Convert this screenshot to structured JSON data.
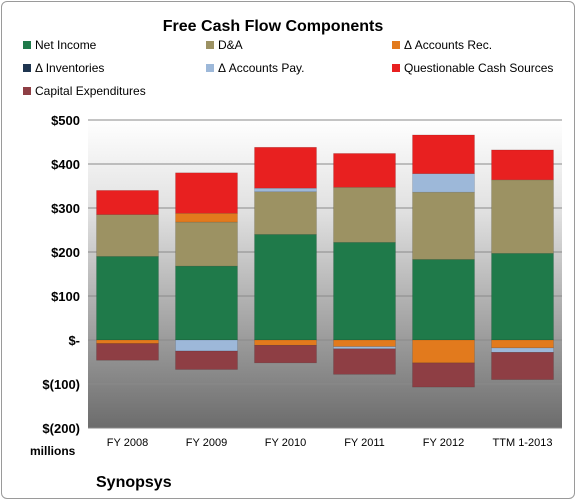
{
  "chart_data": {
    "type": "bar",
    "stacked": true,
    "title": "Free Cash Flow Components",
    "company": "Synopsys",
    "unit_label": "millions",
    "categories": [
      "FY 2008",
      "FY 2009",
      "FY 2010",
      "FY 2011",
      "FY 2012",
      "TTM 1-2013"
    ],
    "y_ticks": [
      "$500",
      "$400",
      "$300",
      "$200",
      "$100",
      "$-",
      "$(100)",
      "$(200)"
    ],
    "ylim": [
      -200,
      500
    ],
    "grid": true,
    "legend_position": "top",
    "series": [
      {
        "name": "Net Income",
        "color": "#1f7a4a",
        "values": [
          190,
          168,
          240,
          222,
          183,
          197
        ]
      },
      {
        "name": "D&A",
        "color": "#9c9263",
        "values": [
          95,
          100,
          97,
          125,
          153,
          167
        ]
      },
      {
        "name": "Δ Accounts Rec.",
        "color": "#e27a1d",
        "values": [
          -8,
          20,
          -12,
          -15,
          -52,
          -18
        ]
      },
      {
        "name": "Δ Inventories",
        "color": "#1f3550",
        "values": [
          0,
          0,
          0,
          0,
          0,
          0
        ]
      },
      {
        "name": "Δ Accounts Pay.",
        "color": "#9db8d9",
        "values": [
          0,
          -25,
          8,
          -5,
          42,
          -10
        ]
      },
      {
        "name": "Questionable Cash Sources",
        "color": "#e82020",
        "values": [
          55,
          92,
          93,
          77,
          88,
          68
        ]
      },
      {
        "name": "Capital Expenditures",
        "color": "#8e3e44",
        "values": [
          -38,
          -42,
          -40,
          -58,
          -55,
          -62
        ]
      }
    ]
  }
}
